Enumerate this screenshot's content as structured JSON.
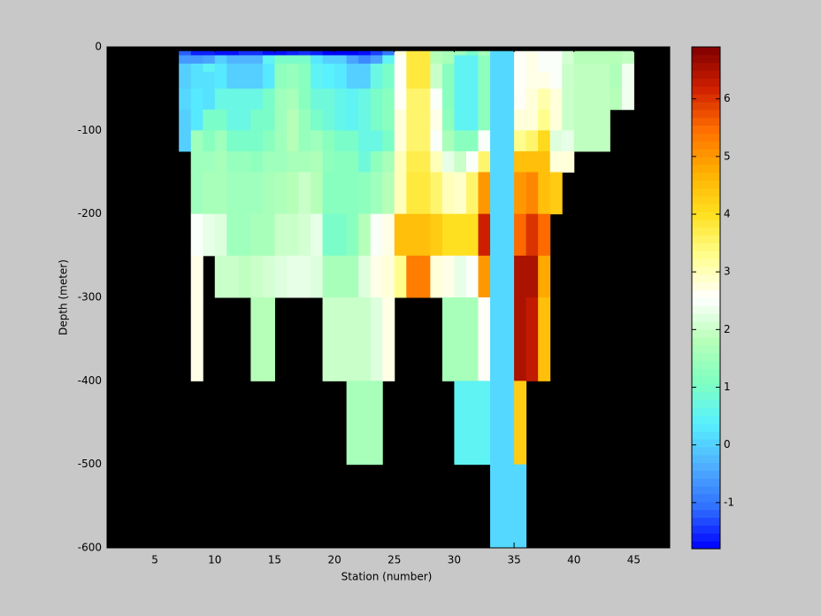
{
  "chart_data": {
    "type": "heatmap",
    "xlabel": "Station (number)",
    "ylabel": "Depth (meter)",
    "xlim": [
      1,
      48
    ],
    "ylim": [
      -600,
      0
    ],
    "xticks": [
      5,
      10,
      15,
      20,
      25,
      30,
      35,
      40,
      45
    ],
    "yticks": [
      0,
      -100,
      -200,
      -300,
      -400,
      -500,
      -600
    ],
    "clim": [
      -1.8,
      6.9
    ],
    "cticks": [
      -1,
      0,
      1,
      2,
      3,
      4,
      5,
      6
    ],
    "colormap": [
      "#0000ff",
      "#3070ff",
      "#50b0ff",
      "#58f0ff",
      "#80ffc0",
      "#b8ffb8",
      "#ffffff",
      "#ffff90",
      "#ffe020",
      "#ffb000",
      "#ff7000",
      "#d02000",
      "#800000"
    ],
    "background": "#000000",
    "x_edges": [
      7,
      8,
      9,
      10,
      11,
      12,
      13,
      14,
      15,
      16,
      17,
      18,
      19,
      20,
      21,
      22,
      23,
      24,
      25,
      26,
      27,
      28,
      29,
      30,
      31,
      32,
      33,
      34,
      35,
      36,
      37,
      38,
      39,
      40,
      41,
      42,
      43,
      44,
      45
    ],
    "y_edges": [
      -5,
      -10,
      -20,
      -30,
      -50,
      -75,
      -100,
      -125,
      -150,
      -200,
      -250,
      -300,
      -400,
      -500,
      -600
    ],
    "z": [
      [
        -1.2,
        -0.6,
        0,
        0,
        0.1,
        0,
        0,
        null,
        null,
        null,
        null,
        null,
        null,
        null
      ],
      [
        -1.6,
        -0.6,
        0.2,
        0.2,
        0.3,
        0.3,
        1.5,
        1.5,
        1.5,
        2.5,
        2.7,
        2.7,
        null,
        null
      ],
      [
        -1.6,
        -0.5,
        0.5,
        0.2,
        0.2,
        1,
        1.2,
        1.5,
        1.6,
        2.3,
        null,
        null,
        null,
        null
      ],
      [
        -1.7,
        0,
        0.3,
        0.3,
        0.7,
        1,
        1.5,
        1.6,
        1.6,
        2.2,
        2,
        null,
        null,
        null
      ],
      [
        -1.7,
        -0.3,
        0,
        0,
        0.7,
        0.7,
        1,
        1.4,
        1.5,
        1.5,
        2,
        null,
        null,
        null
      ],
      [
        -1.5,
        -0.3,
        0,
        0,
        0.7,
        0.7,
        1,
        1.4,
        1.5,
        1.5,
        1.9,
        null,
        null,
        null
      ],
      [
        -1.5,
        -0.3,
        0,
        0,
        0.7,
        1,
        1,
        1.3,
        1.5,
        1.6,
        2,
        1.8,
        null,
        null
      ],
      [
        -1.7,
        0.5,
        0.3,
        0.3,
        1,
        1,
        1.2,
        1.5,
        1.6,
        1.6,
        2.1,
        1.8,
        null,
        null
      ],
      [
        -1.7,
        1,
        1.3,
        1.3,
        1.5,
        1.5,
        1.5,
        1.5,
        1.7,
        2,
        2.2,
        null,
        null,
        null
      ],
      [
        -1.6,
        1,
        1.4,
        1.4,
        1.6,
        1.8,
        1.8,
        1.6,
        1.8,
        2,
        2.3,
        null,
        null,
        null
      ],
      [
        -1.5,
        1,
        1.2,
        1.2,
        1.2,
        1.4,
        1.4,
        1.6,
        2,
        2.1,
        2.3,
        null,
        null,
        null
      ],
      [
        -1.6,
        0.3,
        0.5,
        0.5,
        0.8,
        1,
        1.5,
        1.7,
        1.8,
        2.3,
        2.2,
        null,
        null,
        null
      ],
      [
        -1.8,
        0,
        0.4,
        0.4,
        0.8,
        0.8,
        1.2,
        1.3,
        1.2,
        1,
        1.6,
        2,
        null,
        null
      ],
      [
        -1.8,
        0,
        0.3,
        0.3,
        0.6,
        0.6,
        1,
        1.2,
        1.2,
        1,
        1.6,
        2,
        null,
        null
      ],
      [
        -1.8,
        -0.5,
        0,
        0,
        0.5,
        0.5,
        1,
        1.2,
        1.2,
        1.2,
        1.6,
        2,
        1.6,
        null
      ],
      [
        -1.7,
        -0.8,
        0,
        0,
        0.7,
        0.7,
        0.7,
        0.8,
        1.3,
        1.8,
        2.2,
        2,
        1.6,
        null
      ],
      [
        -1.4,
        -0.5,
        0.7,
        0.7,
        1,
        1,
        0.7,
        1.3,
        1.5,
        2.5,
        2.7,
        2.2,
        1.6,
        null
      ],
      [
        -1,
        0.5,
        1,
        1,
        1.2,
        1.2,
        1,
        1.6,
        1.8,
        2.7,
        2.8,
        2.7,
        null,
        null
      ],
      [
        2.8,
        2.6,
        2.6,
        2.6,
        2.6,
        2.8,
        2.8,
        3,
        3,
        4.5,
        3.3,
        null,
        null,
        null
      ],
      [
        3.8,
        3.8,
        3.8,
        3.8,
        3.5,
        3.5,
        3.5,
        3.7,
        3.8,
        4.5,
        5.3,
        null,
        null,
        null
      ],
      [
        3.8,
        3.8,
        3.8,
        3.8,
        3.5,
        3.5,
        3.5,
        3.7,
        3.8,
        4.5,
        5.3,
        null,
        null,
        null
      ],
      [
        1.8,
        1.8,
        2,
        2,
        2.5,
        2.7,
        2.5,
        3,
        3.5,
        4.3,
        2.8,
        null,
        null,
        null
      ],
      [
        1.6,
        1.6,
        1.2,
        1.2,
        1.2,
        1.3,
        1.6,
        2.3,
        3,
        4,
        2.7,
        1.6,
        null,
        null
      ],
      [
        1.5,
        0.5,
        0.5,
        0.5,
        0.5,
        0.5,
        1.2,
        2,
        2.9,
        4,
        2.3,
        1.6,
        0.5,
        null
      ],
      [
        1,
        0.5,
        0.5,
        0.5,
        0.5,
        0.5,
        1.2,
        2.5,
        3.5,
        4,
        2.5,
        1.6,
        0.5,
        null
      ],
      [
        1.6,
        1.3,
        1.3,
        1.3,
        1.3,
        1.3,
        2.5,
        3.5,
        5,
        6.2,
        5,
        2.6,
        0.5,
        null
      ],
      [
        0.1,
        0.1,
        0.1,
        0.1,
        0.1,
        0.1,
        0.1,
        0.1,
        0.1,
        0.1,
        0.1,
        0.1,
        0.1,
        0.1
      ],
      [
        0.1,
        0.1,
        0.1,
        0.1,
        0.1,
        0.1,
        0.1,
        0.1,
        0.1,
        0.1,
        0.1,
        0.1,
        0.1,
        0.1
      ],
      [
        2.6,
        2.6,
        2.6,
        2.6,
        2.6,
        2.8,
        3.3,
        4.5,
        5,
        5.5,
        6.5,
        6.5,
        4.3,
        0.1
      ],
      [
        2.7,
        2.7,
        2.7,
        2.7,
        2.8,
        2.8,
        3.5,
        4.5,
        5.2,
        6,
        6.5,
        6.3,
        null,
        null
      ],
      [
        2.5,
        2.5,
        2.5,
        2.7,
        3.1,
        3.3,
        4.1,
        4.5,
        4.5,
        5.5,
        4.8,
        4.5,
        null,
        null
      ],
      [
        2.5,
        2.5,
        2.5,
        2.5,
        2.8,
        2.8,
        2.2,
        2.8,
        4.3,
        null,
        null,
        null,
        null,
        null
      ],
      [
        2.1,
        2.1,
        2,
        2,
        2,
        2,
        2.3,
        2.8,
        null,
        null,
        null,
        null,
        null,
        null
      ],
      [
        1.8,
        1.8,
        1.9,
        1.9,
        1.9,
        1.9,
        1.9,
        null,
        null,
        null,
        null,
        null,
        null,
        null
      ],
      [
        1.8,
        1.8,
        1.9,
        1.9,
        1.9,
        1.9,
        1.9,
        null,
        null,
        null,
        null,
        null,
        null,
        null
      ],
      [
        1.8,
        1.8,
        1.9,
        1.9,
        1.9,
        1.9,
        1.9,
        null,
        null,
        null,
        null,
        null,
        null,
        null
      ],
      [
        1.8,
        1.8,
        1.7,
        1.7,
        1.8,
        null,
        null,
        null,
        null,
        null,
        null,
        null,
        null,
        null
      ],
      [
        1.9,
        1.9,
        2.4,
        2.4,
        2.4,
        null,
        null,
        null,
        null,
        null,
        null,
        null,
        null,
        null
      ]
    ]
  }
}
